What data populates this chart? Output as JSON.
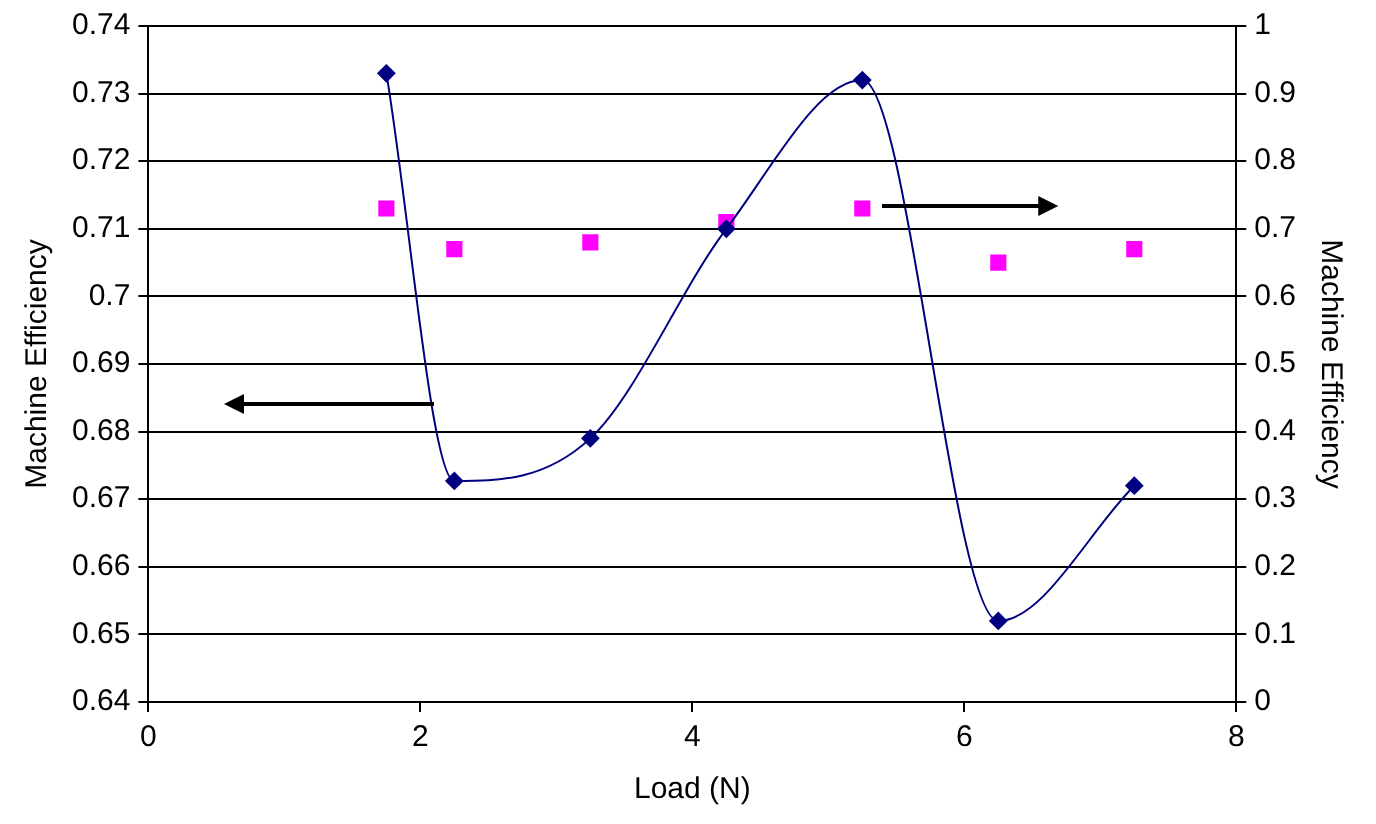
{
  "chart_data": {
    "type": "line",
    "xlabel": "Load (N)",
    "ylabel": "Machine Efficiency",
    "y2label": "Machine Efficiency",
    "x": [
      1.75,
      2.25,
      3.25,
      4.25,
      5.25,
      6.25,
      7.25
    ],
    "series": [
      {
        "type": "line",
        "color": "#000080",
        "marker": "diamond",
        "values": [
          0.733,
          0.6727,
          0.679,
          0.71,
          0.732,
          0.652,
          0.672
        ]
      },
      {
        "type": "scatter",
        "axis": "y2",
        "color": "#ff00ff",
        "marker": "square",
        "values": [
          0.73,
          0.67,
          0.68,
          0.71,
          0.73,
          0.65,
          0.67
        ]
      }
    ],
    "xlim": [
      0,
      8
    ],
    "xticks": [
      0,
      2,
      4,
      6,
      8
    ],
    "ylim": [
      0.64,
      0.74
    ],
    "yticks": [
      0.64,
      0.65,
      0.66,
      0.67,
      0.68,
      0.69,
      0.7,
      0.71,
      0.72,
      0.73,
      0.74
    ],
    "y2lim": [
      0,
      1
    ],
    "y2ticks": [
      0,
      0.1,
      0.2,
      0.3,
      0.4,
      0.5,
      0.6,
      0.7,
      0.8,
      0.9,
      1
    ],
    "grid": "y",
    "legend": false
  }
}
